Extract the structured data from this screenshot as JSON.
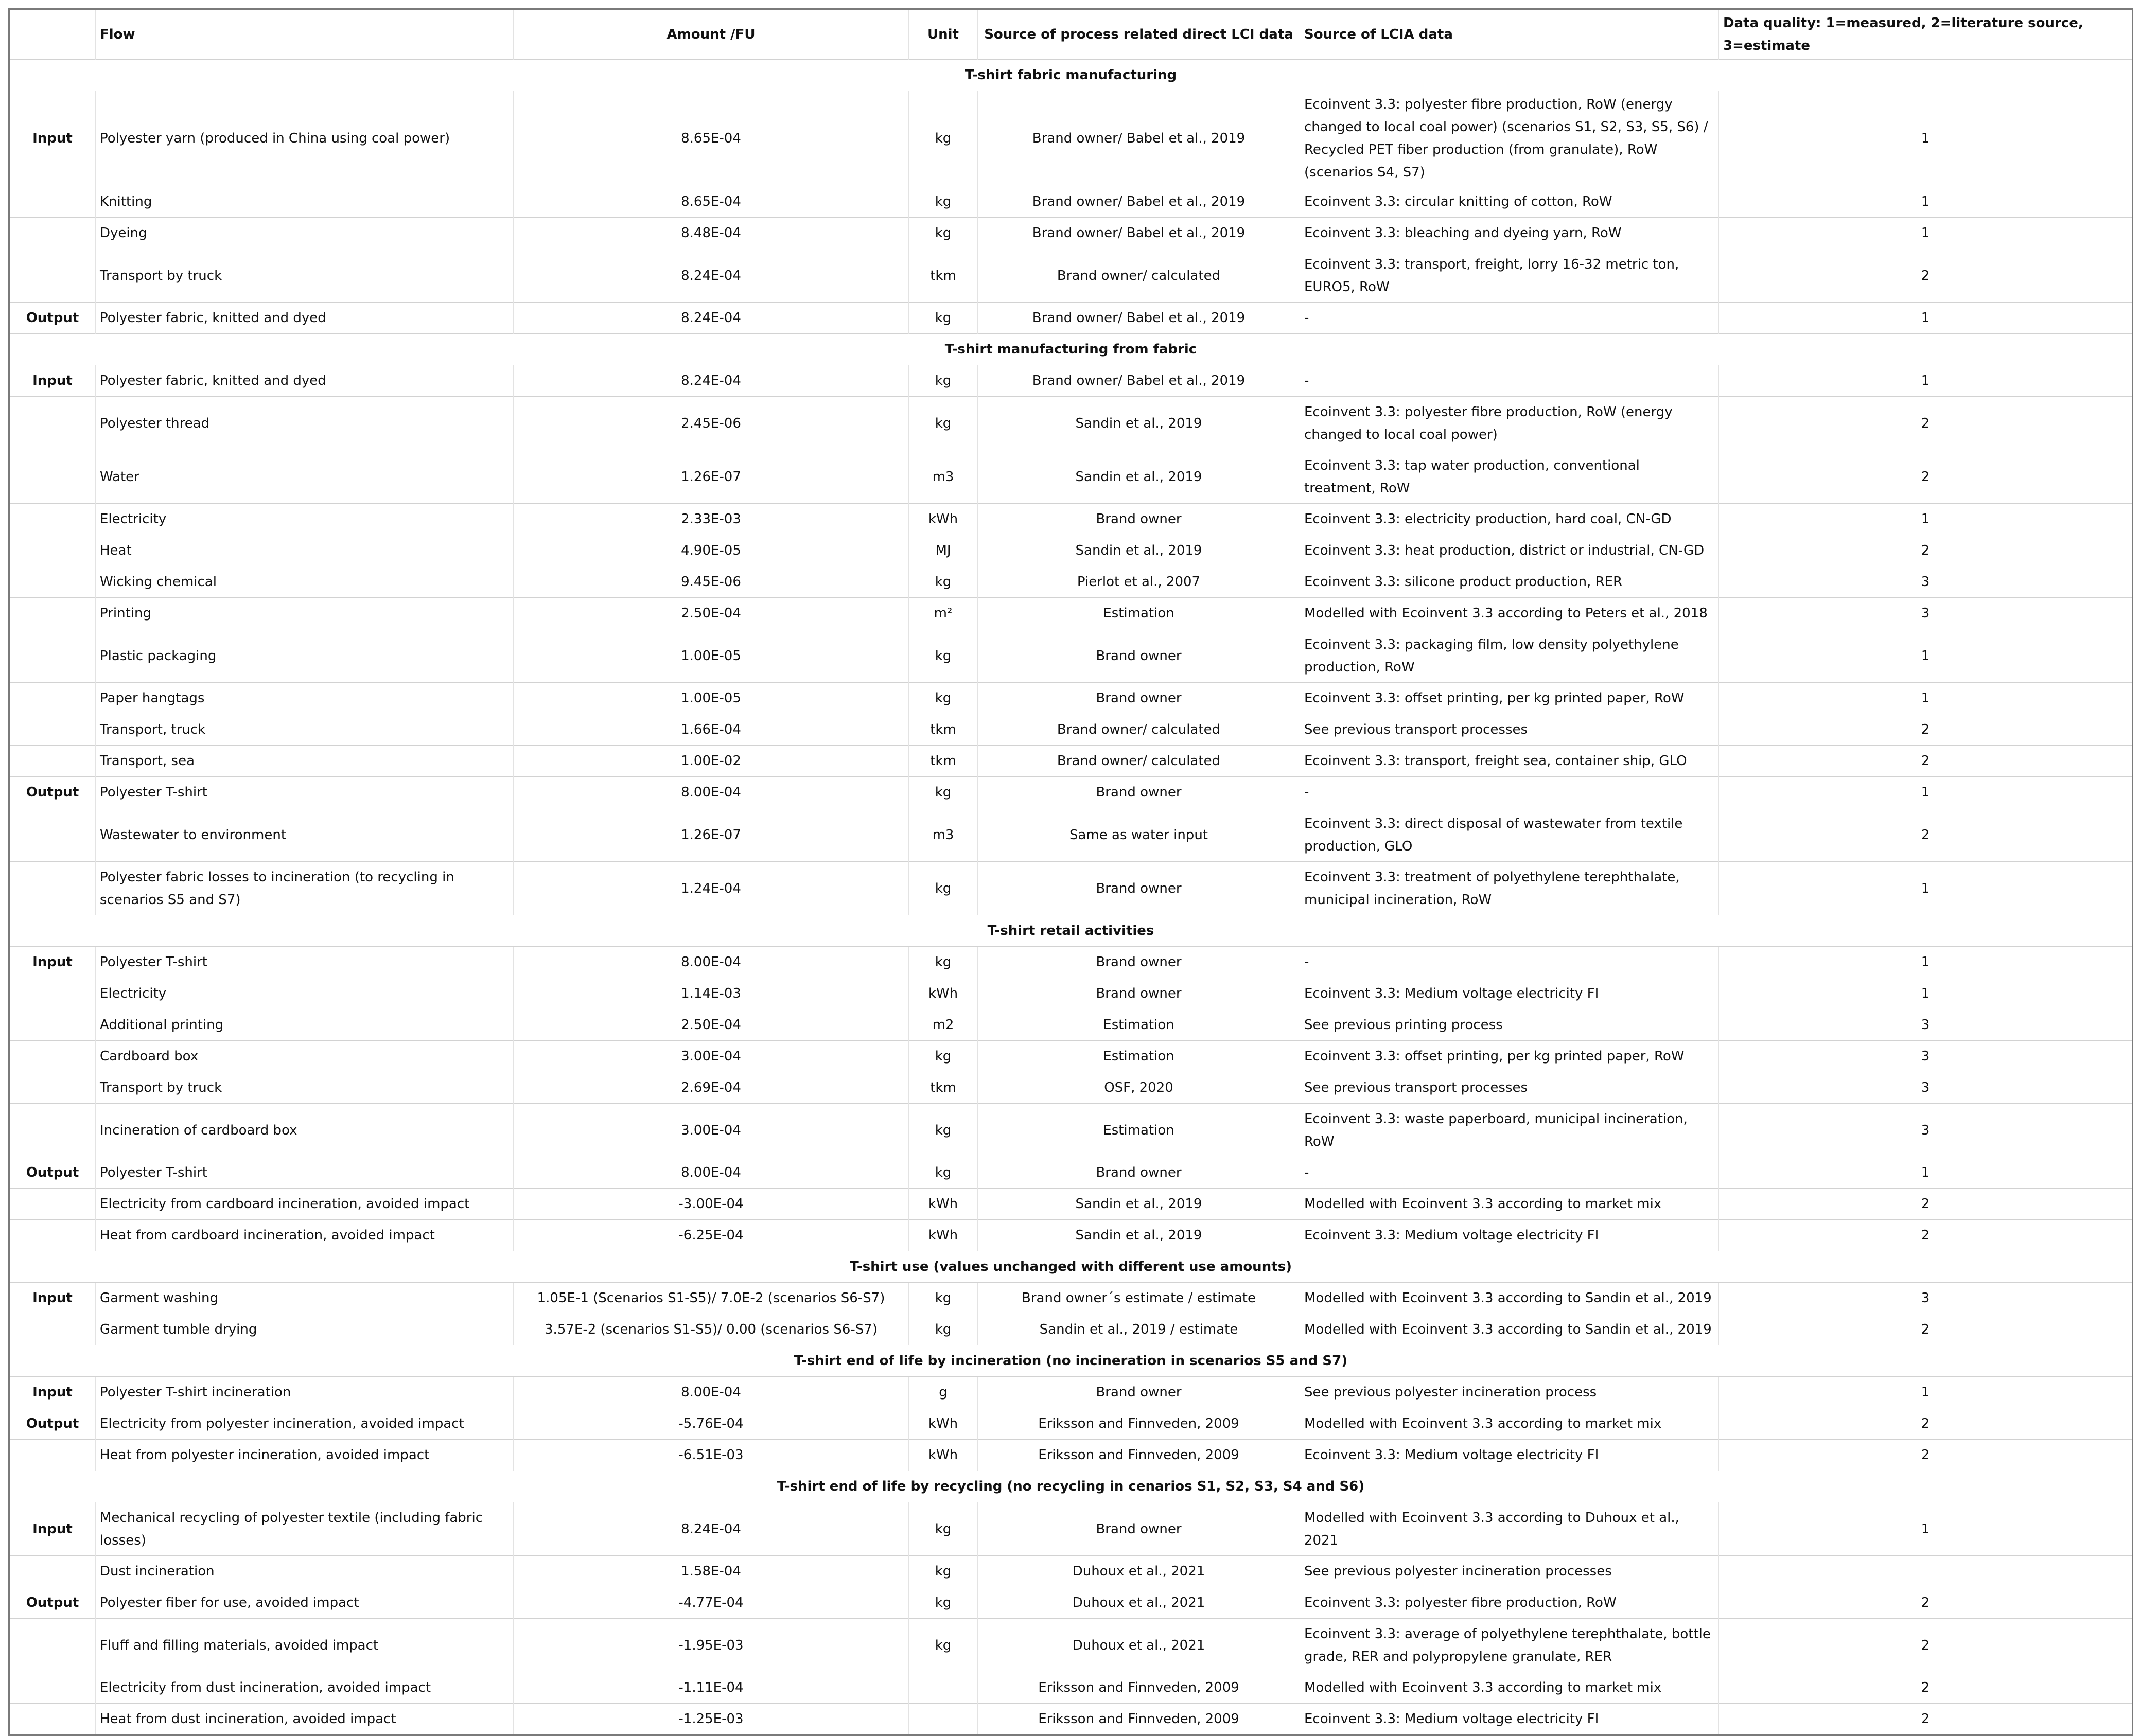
{
  "headers": [
    "",
    "Flow",
    "Amount /FU",
    "Unit",
    "Source of process related direct LCI data",
    "Source of LCIA data",
    "Data quality: 1=measured, 2=literature source, 3=estimate"
  ],
  "rows": [
    {
      "type": "section",
      "title": "T-shirt fabric manufacturing"
    },
    {
      "type": "data",
      "lines": 2,
      "role": "Input",
      "flow": "Polyester yarn (produced in China using coal power)",
      "amount": "8.65E-04",
      "unit": "kg",
      "lci": "Brand owner/ Babel et al., 2019",
      "lcia": "Ecoinvent 3.3: polyester fibre production, RoW (energy changed to local coal power) (scenarios S1, S2, S3, S5, S6) / Recycled PET fiber production (from granulate), RoW (scenarios S4, S7)",
      "quality": "1"
    },
    {
      "type": "data",
      "lines": 1,
      "role": "",
      "flow": "Knitting",
      "amount": "8.65E-04",
      "unit": "kg",
      "lci": "Brand owner/ Babel et al., 2019",
      "lcia": "Ecoinvent 3.3: circular knitting of cotton, RoW",
      "quality": "1"
    },
    {
      "type": "data",
      "lines": 1,
      "role": "",
      "flow": "Dyeing",
      "amount": "8.48E-04",
      "unit": "kg",
      "lci": "Brand owner/ Babel et al., 2019",
      "lcia": "Ecoinvent 3.3: bleaching and dyeing yarn, RoW",
      "quality": "1"
    },
    {
      "type": "data",
      "lines": 2,
      "role": "",
      "flow": "Transport by truck",
      "amount": "8.24E-04",
      "unit": "tkm",
      "lci": "Brand owner/ calculated",
      "lcia": "Ecoinvent 3.3: transport, freight, lorry 16-32 metric ton, EURO5, RoW",
      "quality": "2"
    },
    {
      "type": "data",
      "lines": 1,
      "role": "Output",
      "flow": "Polyester fabric, knitted and dyed",
      "amount": "8.24E-04",
      "unit": "kg",
      "lci": "Brand owner/ Babel et al., 2019",
      "lcia": "-",
      "quality": "1"
    },
    {
      "type": "section",
      "title": "T-shirt manufacturing from fabric"
    },
    {
      "type": "data",
      "lines": 1,
      "role": "Input",
      "flow": "Polyester fabric, knitted and dyed",
      "amount": "8.24E-04",
      "unit": "kg",
      "lci": "Brand owner/ Babel et al., 2019",
      "lcia": "-",
      "quality": "1"
    },
    {
      "type": "data",
      "lines": 2,
      "role": "",
      "flow": "Polyester thread",
      "amount": "2.45E-06",
      "unit": "kg",
      "lci": "Sandin et al., 2019",
      "lcia": "Ecoinvent 3.3: polyester fibre production, RoW (energy changed to local coal power)",
      "quality": "2"
    },
    {
      "type": "data",
      "lines": 2,
      "role": "",
      "flow": "Water",
      "amount": "1.26E-07",
      "unit": "m3",
      "lci": "Sandin et al., 2019",
      "lcia": "Ecoinvent 3.3: tap water production, conventional treatment, RoW",
      "quality": "2"
    },
    {
      "type": "data",
      "lines": 1,
      "role": "",
      "flow": "Electricity",
      "amount": "2.33E-03",
      "unit": "kWh",
      "lci": "Brand owner",
      "lcia": "Ecoinvent 3.3: electricity production, hard coal, CN-GD",
      "quality": "1"
    },
    {
      "type": "data",
      "lines": 1,
      "role": "",
      "flow": "Heat",
      "amount": "4.90E-05",
      "unit": "MJ",
      "lci": "Sandin et al., 2019",
      "lcia": "Ecoinvent 3.3: heat production, district or industrial, CN-GD",
      "quality": "2"
    },
    {
      "type": "data",
      "lines": 1,
      "role": "",
      "flow": "Wicking chemical",
      "amount": "9.45E-06",
      "unit": "kg",
      "lci": "Pierlot et al., 2007",
      "lcia": "Ecoinvent 3.3: silicone product production, RER",
      "quality": "3"
    },
    {
      "type": "data",
      "lines": 1,
      "role": "",
      "flow": "Printing",
      "amount": "2.50E-04",
      "unit": "m²",
      "lci": "Estimation",
      "lcia": "Modelled with Ecoinvent 3.3 according to Peters et al., 2018",
      "quality": "3"
    },
    {
      "type": "data",
      "lines": 2,
      "role": "",
      "flow": "Plastic packaging",
      "amount": "1.00E-05",
      "unit": "kg",
      "lci": "Brand owner",
      "lcia": "Ecoinvent 3.3: packaging film, low density polyethylene production, RoW",
      "quality": "1"
    },
    {
      "type": "data",
      "lines": 1,
      "role": "",
      "flow": "Paper hangtags",
      "amount": "1.00E-05",
      "unit": "kg",
      "lci": "Brand owner",
      "lcia": "Ecoinvent 3.3: offset printing, per kg printed paper, RoW",
      "quality": "1"
    },
    {
      "type": "data",
      "lines": 1,
      "role": "",
      "flow": "Transport, truck",
      "amount": "1.66E-04",
      "unit": "tkm",
      "lci": "Brand owner/ calculated",
      "lcia": "See previous transport processes",
      "quality": "2"
    },
    {
      "type": "data",
      "lines": 1,
      "role": "",
      "flow": "Transport, sea",
      "amount": "1.00E-02",
      "unit": "tkm",
      "lci": "Brand owner/ calculated",
      "lcia": "Ecoinvent 3.3: transport, freight sea, container ship, GLO",
      "quality": "2"
    },
    {
      "type": "data",
      "lines": 1,
      "role": "Output",
      "flow": "Polyester T-shirt",
      "amount": "8.00E-04",
      "unit": "kg",
      "lci": "Brand owner",
      "lcia": "-",
      "quality": "1"
    },
    {
      "type": "data",
      "lines": 2,
      "role": "",
      "flow": "Wastewater to environment",
      "amount": "1.26E-07",
      "unit": "m3",
      "lci": "Same as water input",
      "lcia": "Ecoinvent 3.3: direct disposal of wastewater from textile production, GLO",
      "quality": "2"
    },
    {
      "type": "data",
      "lines": 2,
      "role": "",
      "flow": "Polyester fabric losses to incineration (to recycling in scenarios S5 and S7)",
      "amount": "1.24E-04",
      "unit": "kg",
      "lci": "Brand owner",
      "lcia": "Ecoinvent 3.3: treatment of polyethylene terephthalate, municipal incineration, RoW",
      "quality": "1"
    },
    {
      "type": "section",
      "title": "T-shirt retail activities"
    },
    {
      "type": "data",
      "lines": 1,
      "role": "Input",
      "flow": "Polyester T-shirt",
      "amount": "8.00E-04",
      "unit": "kg",
      "lci": "Brand owner",
      "lcia": "-",
      "quality": "1"
    },
    {
      "type": "data",
      "lines": 1,
      "role": "",
      "flow": "Electricity",
      "amount": "1.14E-03",
      "unit": "kWh",
      "lci": "Brand owner",
      "lcia": "Ecoinvent 3.3: Medium voltage electricity FI",
      "quality": "1"
    },
    {
      "type": "data",
      "lines": 1,
      "role": "",
      "flow": "Additional printing",
      "amount": "2.50E-04",
      "unit": "m2",
      "lci": "Estimation",
      "lcia": "See previous printing process",
      "quality": "3"
    },
    {
      "type": "data",
      "lines": 1,
      "role": "",
      "flow": "Cardboard box",
      "amount": "3.00E-04",
      "unit": "kg",
      "lci": "Estimation",
      "lcia": "Ecoinvent 3.3: offset printing, per kg printed paper, RoW",
      "quality": "3"
    },
    {
      "type": "data",
      "lines": 1,
      "role": "",
      "flow": "Transport by truck",
      "amount": "2.69E-04",
      "unit": "tkm",
      "lci": "OSF, 2020",
      "lcia": "See previous transport processes",
      "quality": "3"
    },
    {
      "type": "data",
      "lines": 2,
      "role": "",
      "flow": "Incineration of cardboard box",
      "amount": "3.00E-04",
      "unit": "kg",
      "lci": "Estimation",
      "lcia": "Ecoinvent 3.3: waste paperboard, municipal incineration, RoW",
      "quality": "3"
    },
    {
      "type": "data",
      "lines": 1,
      "role": "Output",
      "flow": "Polyester T-shirt",
      "amount": "8.00E-04",
      "unit": "kg",
      "lci": "Brand owner",
      "lcia": "-",
      "quality": "1"
    },
    {
      "type": "data",
      "lines": 1,
      "role": "",
      "flow": "Electricity from cardboard incineration, avoided impact",
      "amount": "-3.00E-04",
      "unit": "kWh",
      "lci": "Sandin et al., 2019",
      "lcia": "Modelled with Ecoinvent 3.3 according to market mix",
      "quality": "2"
    },
    {
      "type": "data",
      "lines": 1,
      "role": "",
      "flow": "Heat from cardboard incineration, avoided impact",
      "amount": "-6.25E-04",
      "unit": "kWh",
      "lci": "Sandin et al., 2019",
      "lcia": "Ecoinvent 3.3: Medium voltage electricity FI",
      "quality": "2"
    },
    {
      "type": "section",
      "title": "T-shirt use (values unchanged with different use amounts)"
    },
    {
      "type": "data",
      "lines": 1,
      "role": "Input",
      "flow": "Garment washing",
      "amount": "1.05E-1 (Scenarios S1-S5)/ 7.0E-2 (scenarios S6-S7)",
      "unit": "kg",
      "lci": "Brand owner´s estimate / estimate",
      "lcia": "Modelled with Ecoinvent 3.3 according to Sandin et al., 2019",
      "quality": "3"
    },
    {
      "type": "data",
      "lines": 1,
      "role": "",
      "flow": "Garment tumble drying",
      "amount": "3.57E-2 (scenarios S1-S5)/ 0.00 (scenarios S6-S7)",
      "unit": "kg",
      "lci": "Sandin et al., 2019 / estimate",
      "lcia": "Modelled with Ecoinvent 3.3 according to Sandin et al., 2019",
      "quality": "2"
    },
    {
      "type": "section",
      "title": "T-shirt end of life by incineration (no incineration in scenarios S5 and S7)"
    },
    {
      "type": "data",
      "lines": 1,
      "role": "Input",
      "flow": "Polyester T-shirt incineration",
      "amount": "8.00E-04",
      "unit": "g",
      "lci": "Brand owner",
      "lcia": "See previous polyester incineration process",
      "quality": "1"
    },
    {
      "type": "data",
      "lines": 1,
      "role": "Output",
      "flow": "Electricity from polyester incineration, avoided impact",
      "amount": "-5.76E-04",
      "unit": "kWh",
      "lci": "Eriksson and Finnveden, 2009",
      "lcia": "Modelled with Ecoinvent 3.3 according to market mix",
      "quality": "2"
    },
    {
      "type": "data",
      "lines": 1,
      "role": "",
      "flow": "Heat from polyester incineration, avoided impact",
      "amount": "-6.51E-03",
      "unit": "kWh",
      "lci": "Eriksson and Finnveden, 2009",
      "lcia": "Ecoinvent 3.3: Medium voltage electricity FI",
      "quality": "2"
    },
    {
      "type": "section",
      "title": "T-shirt end of life by recycling (no recycling in cenarios S1, S2, S3, S4 and S6)"
    },
    {
      "type": "data",
      "lines": 2,
      "role": "Input",
      "flow": "Mechanical recycling of polyester textile (including fabric losses)",
      "amount": "8.24E-04",
      "unit": "kg",
      "lci": "Brand owner",
      "lcia": "Modelled with Ecoinvent 3.3 according to Duhoux et al., 2021",
      "quality": "1"
    },
    {
      "type": "data",
      "lines": 1,
      "role": "",
      "flow": "Dust incineration",
      "amount": "1.58E-04",
      "unit": "kg",
      "lci": "Duhoux et al., 2021",
      "lcia": "See previous polyester incineration processes",
      "quality": ""
    },
    {
      "type": "data",
      "lines": 1,
      "role": "Output",
      "flow": "Polyester fiber for use, avoided impact",
      "amount": "-4.77E-04",
      "unit": "kg",
      "lci": "Duhoux et al., 2021",
      "lcia": "Ecoinvent 3.3: polyester fibre production, RoW",
      "quality": "2"
    },
    {
      "type": "data",
      "lines": 2,
      "role": "",
      "flow": "Fluff and filling materials, avoided impact",
      "amount": "-1.95E-03",
      "unit": "kg",
      "lci": "Duhoux et al., 2021",
      "lcia": "Ecoinvent 3.3: average of polyethylene terephthalate, bottle grade, RER and polypropylene granulate, RER",
      "quality": "2"
    },
    {
      "type": "data",
      "lines": 1,
      "role": "",
      "flow": "Electricity from dust incineration, avoided impact",
      "amount": "-1.11E-04",
      "unit": "",
      "lci": "Eriksson and Finnveden, 2009",
      "lcia": "Modelled with Ecoinvent 3.3 according to market mix",
      "quality": "2"
    },
    {
      "type": "data",
      "lines": 1,
      "role": "",
      "flow": "Heat from dust incineration, avoided impact",
      "amount": "-1.25E-03",
      "unit": "",
      "lci": "Eriksson and Finnveden, 2009",
      "lcia": "Ecoinvent 3.3: Medium voltage electricity FI",
      "quality": "2"
    }
  ]
}
